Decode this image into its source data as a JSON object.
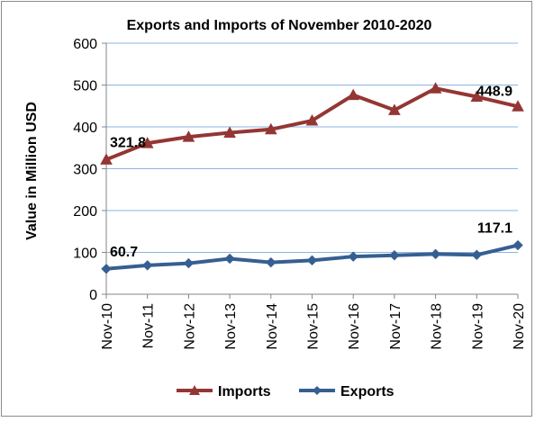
{
  "chart_data": {
    "type": "line",
    "title": "Exports and Imports of November 2010-2020",
    "ylabel": "Value in  Million  USD",
    "xlabel": "",
    "ylim": [
      0,
      600
    ],
    "yticks": [
      0,
      100,
      200,
      300,
      400,
      500,
      600
    ],
    "categories": [
      "Nov-10",
      "Nov-11",
      "Nov-12",
      "Nov-13",
      "Nov-14",
      "Nov-15",
      "Nov-16",
      "Nov-17",
      "Nov-18",
      "Nov-19",
      "Nov-20"
    ],
    "grid": true,
    "legend_position": "bottom",
    "series": [
      {
        "name": "Imports",
        "color": "#943634",
        "marker": "triangle",
        "values": [
          321.8,
          361,
          376,
          386,
          394,
          415,
          476,
          440,
          492,
          472,
          448.9
        ]
      },
      {
        "name": "Exports",
        "color": "#365f91",
        "marker": "diamond",
        "values": [
          60.7,
          69,
          74,
          85,
          76,
          81,
          90,
          93,
          96,
          94,
          117.1
        ]
      }
    ],
    "data_labels": [
      {
        "series": 0,
        "index": 0,
        "text": "321.8"
      },
      {
        "series": 0,
        "index": 10,
        "text": "448.9"
      },
      {
        "series": 1,
        "index": 0,
        "text": "60.7"
      },
      {
        "series": 1,
        "index": 10,
        "text": "117.1"
      }
    ]
  }
}
